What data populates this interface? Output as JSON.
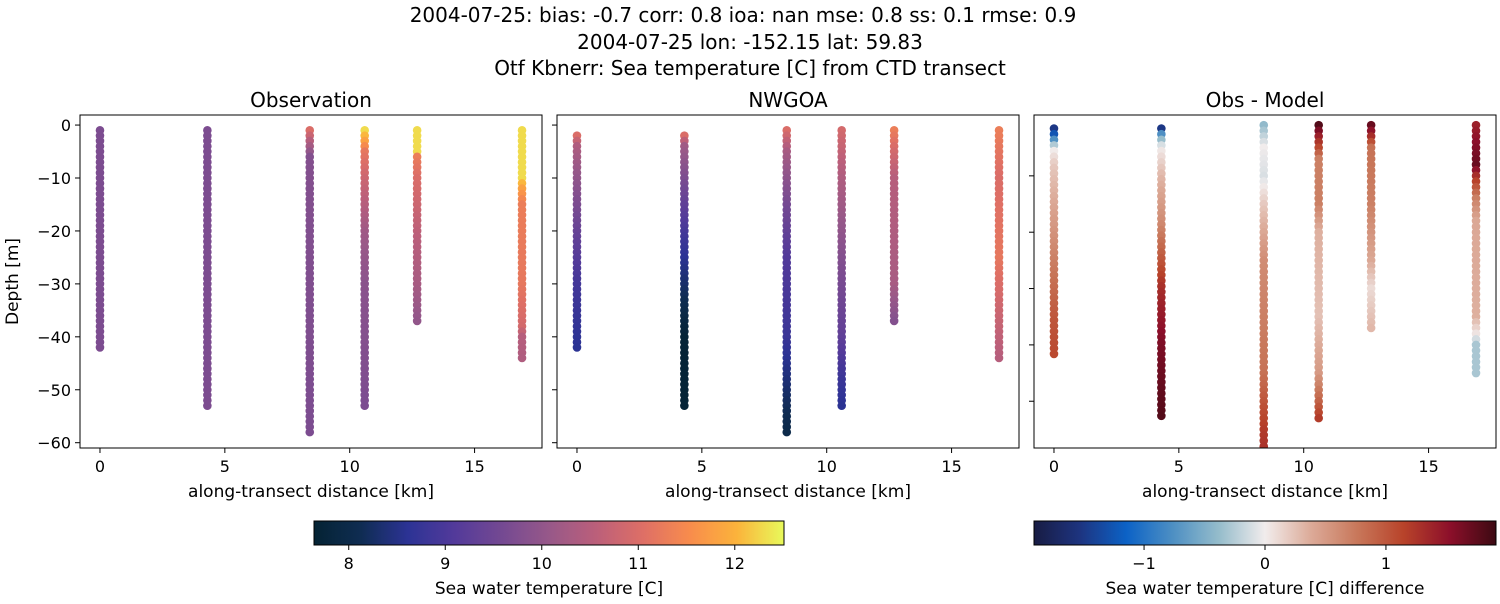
{
  "title_lines": [
    "2004-07-25: bias: -0.7  corr: 0.8  ioa: nan  mse: 0.8  ss: 0.1  rmse: 0.9",
    "2004-07-25 lon: -152.15 lat: 59.83",
    "Otf Kbnerr: Sea temperature [C] from CTD transect"
  ],
  "chart_data": [
    {
      "type": "scatter",
      "title": "Observation",
      "xlabel": "along-transect distance [km]",
      "ylabel": "Depth [m]",
      "xlim": [
        -0.8,
        17.7
      ],
      "ylim": [
        -61,
        1.9
      ],
      "xticks": [
        0,
        5,
        10,
        15
      ],
      "yticks": [
        0,
        -10,
        -20,
        -30,
        -40,
        -50,
        -60
      ],
      "colormap": "thermal",
      "clim": [
        7.64,
        12.51
      ],
      "casts": [
        {
          "x": 0,
          "top": -1,
          "bottom": -42,
          "profile": [
            [
              -1,
              9.7
            ],
            [
              -42,
              9.7
            ]
          ]
        },
        {
          "x": 4.3,
          "top": -1,
          "bottom": -53,
          "profile": [
            [
              -1,
              9.7
            ],
            [
              -53,
              9.7
            ]
          ]
        },
        {
          "x": 8.4,
          "top": -1,
          "bottom": -58,
          "profile": [
            [
              -1,
              11.0
            ],
            [
              -3,
              10.5
            ],
            [
              -6,
              9.8
            ],
            [
              -58,
              9.7
            ]
          ]
        },
        {
          "x": 10.6,
          "top": -1,
          "bottom": -53,
          "profile": [
            [
              -1,
              12.3
            ],
            [
              -3,
              11.8
            ],
            [
              -5,
              11.2
            ],
            [
              -10,
              10.8
            ],
            [
              -20,
              10.2
            ],
            [
              -30,
              9.9
            ],
            [
              -53,
              9.7
            ]
          ]
        },
        {
          "x": 12.7,
          "top": -1,
          "bottom": -37,
          "profile": [
            [
              -1,
              12.3
            ],
            [
              -5,
              12.3
            ],
            [
              -6,
              11.3
            ],
            [
              -10,
              11.0
            ],
            [
              -20,
              10.6
            ],
            [
              -30,
              10.3
            ],
            [
              -37,
              10.0
            ]
          ]
        },
        {
          "x": 16.9,
          "top": -1,
          "bottom": -44,
          "profile": [
            [
              -1,
              12.3
            ],
            [
              -10,
              12.3
            ],
            [
              -12,
              11.8
            ],
            [
              -15,
              11.3
            ],
            [
              -30,
              11.2
            ],
            [
              -38,
              10.9
            ],
            [
              -40,
              10.5
            ],
            [
              -44,
              10.4
            ]
          ]
        }
      ]
    },
    {
      "type": "scatter",
      "title": "NWGOA",
      "xlabel": "along-transect distance [km]",
      "xlim": [
        -0.8,
        17.7
      ],
      "ylim": [
        -61,
        1.9
      ],
      "xticks": [
        0,
        5,
        10,
        15
      ],
      "yticks": [
        0,
        -10,
        -20,
        -30,
        -40,
        -50,
        -60
      ],
      "colormap": "thermal",
      "clim": [
        7.64,
        12.51
      ],
      "casts": [
        {
          "x": 0,
          "top": -2,
          "bottom": -42,
          "profile": [
            [
              -2,
              11.0
            ],
            [
              -4,
              10.4
            ],
            [
              -10,
              10.0
            ],
            [
              -20,
              9.4
            ],
            [
              -30,
              8.9
            ],
            [
              -42,
              8.6
            ]
          ]
        },
        {
          "x": 4.3,
          "top": -2,
          "bottom": -53,
          "profile": [
            [
              -2,
              11.0
            ],
            [
              -4,
              10.2
            ],
            [
              -15,
              9.3
            ],
            [
              -22,
              8.8
            ],
            [
              -30,
              8.3
            ],
            [
              -40,
              7.7
            ],
            [
              -53,
              7.7
            ]
          ]
        },
        {
          "x": 8.4,
          "top": -1,
          "bottom": -58,
          "profile": [
            [
              -1,
              11.0
            ],
            [
              -5,
              10.3
            ],
            [
              -15,
              9.6
            ],
            [
              -25,
              9.1
            ],
            [
              -40,
              8.8
            ],
            [
              -50,
              8.3
            ],
            [
              -58,
              8.0
            ]
          ]
        },
        {
          "x": 10.6,
          "top": -1,
          "bottom": -53,
          "profile": [
            [
              -1,
              10.9
            ],
            [
              -10,
              10.4
            ],
            [
              -25,
              9.8
            ],
            [
              -40,
              9.3
            ],
            [
              -48,
              8.8
            ],
            [
              -53,
              8.6
            ]
          ]
        },
        {
          "x": 12.7,
          "top": -1,
          "bottom": -37,
          "profile": [
            [
              -1,
              11.3
            ],
            [
              -5,
              10.9
            ],
            [
              -10,
              10.5
            ],
            [
              -30,
              10.3
            ],
            [
              -37,
              9.8
            ]
          ]
        },
        {
          "x": 16.9,
          "top": -1,
          "bottom": -44,
          "profile": [
            [
              -1,
              11.3
            ],
            [
              -10,
              11.0
            ],
            [
              -25,
              11.2
            ],
            [
              -35,
              10.8
            ],
            [
              -44,
              10.5
            ]
          ]
        }
      ]
    },
    {
      "type": "scatter",
      "title": "Obs - Model",
      "xlabel": "along-transect distance [km]",
      "xlim": [
        -0.8,
        17.7
      ],
      "ylim": [
        -58.3,
        0.8
      ],
      "xticks": [
        0,
        5,
        10,
        15
      ],
      "yticks": [
        -10,
        -20,
        -30,
        -40,
        -50
      ],
      "colormap": "balance",
      "clim": [
        -1.91,
        1.91
      ],
      "casts": [
        {
          "x": 0,
          "top": -1.6,
          "bottom": -42,
          "profile": [
            [
              -1.6,
              -1.5
            ],
            [
              -2.5,
              -1.3
            ],
            [
              -3.5,
              -0.8
            ],
            [
              -4.5,
              -0.3
            ],
            [
              -5.5,
              0
            ],
            [
              -8,
              0.2
            ],
            [
              -15,
              0.4
            ],
            [
              -25,
              0.7
            ],
            [
              -35,
              1.0
            ],
            [
              -42,
              1.1
            ]
          ]
        },
        {
          "x": 4.3,
          "top": -1.6,
          "bottom": -53,
          "profile": [
            [
              -1.6,
              -1.5
            ],
            [
              -2.5,
              -0.8
            ],
            [
              -3.5,
              -0.4
            ],
            [
              -5,
              0
            ],
            [
              -10,
              0.3
            ],
            [
              -18,
              0.6
            ],
            [
              -25,
              1.0
            ],
            [
              -30,
              1.3
            ],
            [
              -40,
              1.6
            ],
            [
              -53,
              1.8
            ]
          ]
        },
        {
          "x": 8.4,
          "top": -1,
          "bottom": -60,
          "profile": [
            [
              -1,
              -0.4
            ],
            [
              -5,
              0
            ],
            [
              -10,
              -0.1
            ],
            [
              -15,
              0.2
            ],
            [
              -25,
              0.6
            ],
            [
              -45,
              0.8
            ],
            [
              -55,
              1.2
            ],
            [
              -60,
              1.3
            ]
          ]
        },
        {
          "x": 10.6,
          "top": -1,
          "bottom": -53,
          "profile": [
            [
              -1,
              1.8
            ],
            [
              -3,
              1.4
            ],
            [
              -5,
              1.1
            ],
            [
              -7,
              0.7
            ],
            [
              -15,
              0.7
            ],
            [
              -20,
              0.35
            ],
            [
              -35,
              0.25
            ],
            [
              -45,
              0.5
            ],
            [
              -50,
              0.9
            ],
            [
              -53,
              1.2
            ]
          ]
        },
        {
          "x": 12.7,
          "top": -1,
          "bottom": -37,
          "profile": [
            [
              -1,
              1.7
            ],
            [
              -3,
              1.3
            ],
            [
              -5,
              0.8
            ],
            [
              -15,
              0.7
            ],
            [
              -25,
              0.4
            ],
            [
              -30,
              0.1
            ],
            [
              -37,
              0.3
            ]
          ]
        },
        {
          "x": 16.9,
          "top": -1,
          "bottom": -45,
          "profile": [
            [
              -1,
              1.4
            ],
            [
              -8,
              1.7
            ],
            [
              -10,
              1.3
            ],
            [
              -12,
              1.0
            ],
            [
              -14,
              0.7
            ],
            [
              -18,
              0.4
            ],
            [
              -35,
              0.35
            ],
            [
              -38,
              0.05
            ],
            [
              -40,
              -0.3
            ],
            [
              -45,
              -0.3
            ]
          ]
        }
      ]
    }
  ],
  "colorbars": [
    {
      "label": "Sea water temperature [C]",
      "colormap": "thermal",
      "range": [
        7.64,
        12.51
      ],
      "ticks": [
        8,
        9,
        10,
        11,
        12
      ],
      "tick_labels": [
        "8",
        "9",
        "10",
        "11",
        "12"
      ]
    },
    {
      "label": "Sea water temperature [C] difference",
      "colormap": "balance",
      "range": [
        -1.91,
        1.91
      ],
      "ticks": [
        -1,
        0,
        1
      ],
      "tick_labels": [
        "−1",
        "0",
        "1"
      ]
    }
  ],
  "colormaps": {
    "thermal": [
      "#042333",
      "#0f2c52",
      "#2c3395",
      "#533a9a",
      "#744992",
      "#975889",
      "#bb5f7a",
      "#de6f66",
      "#f88c4c",
      "#fbb33b",
      "#e8fa5b"
    ],
    "balance": [
      "#181c43",
      "#1d3480",
      "#0c62c6",
      "#4d8fc3",
      "#95bccb",
      "#f1ecec",
      "#dcaa98",
      "#c8775a",
      "#b8432a",
      "#8c0f2a",
      "#3c0912"
    ]
  }
}
